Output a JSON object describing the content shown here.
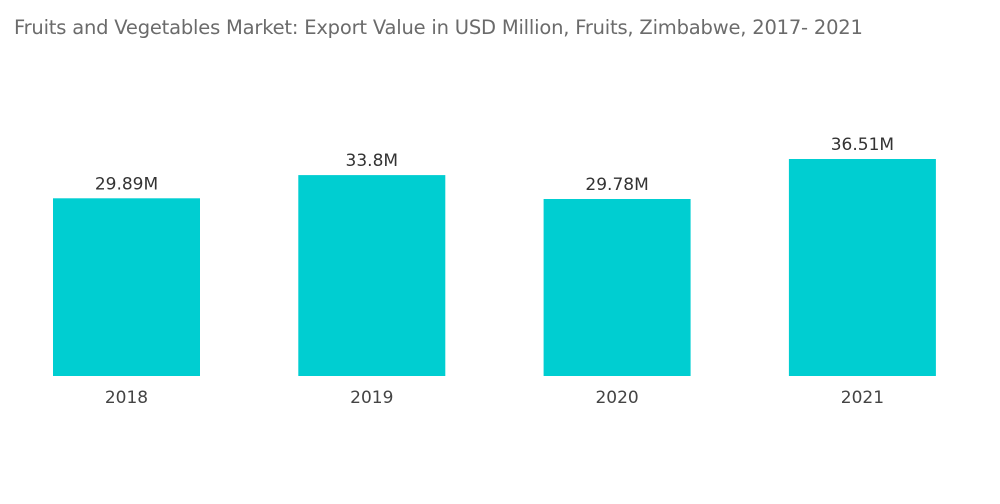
{
  "chart_data": {
    "type": "bar",
    "title": "Fruits and Vegetables Market: Export Value in USD Million, Fruits, Zimbabwe, 2017- 2021",
    "categories": [
      "2018",
      "2019",
      "2020",
      "2021"
    ],
    "values": [
      29.89,
      33.8,
      29.78,
      36.51
    ],
    "data_labels": [
      "29.89M",
      "33.8M",
      "29.78M",
      "36.51M"
    ],
    "xlabel": "",
    "ylabel": "",
    "ylim": [
      0,
      36.51
    ],
    "grid": false,
    "legend": "none",
    "bar_color": "#00CED1"
  }
}
